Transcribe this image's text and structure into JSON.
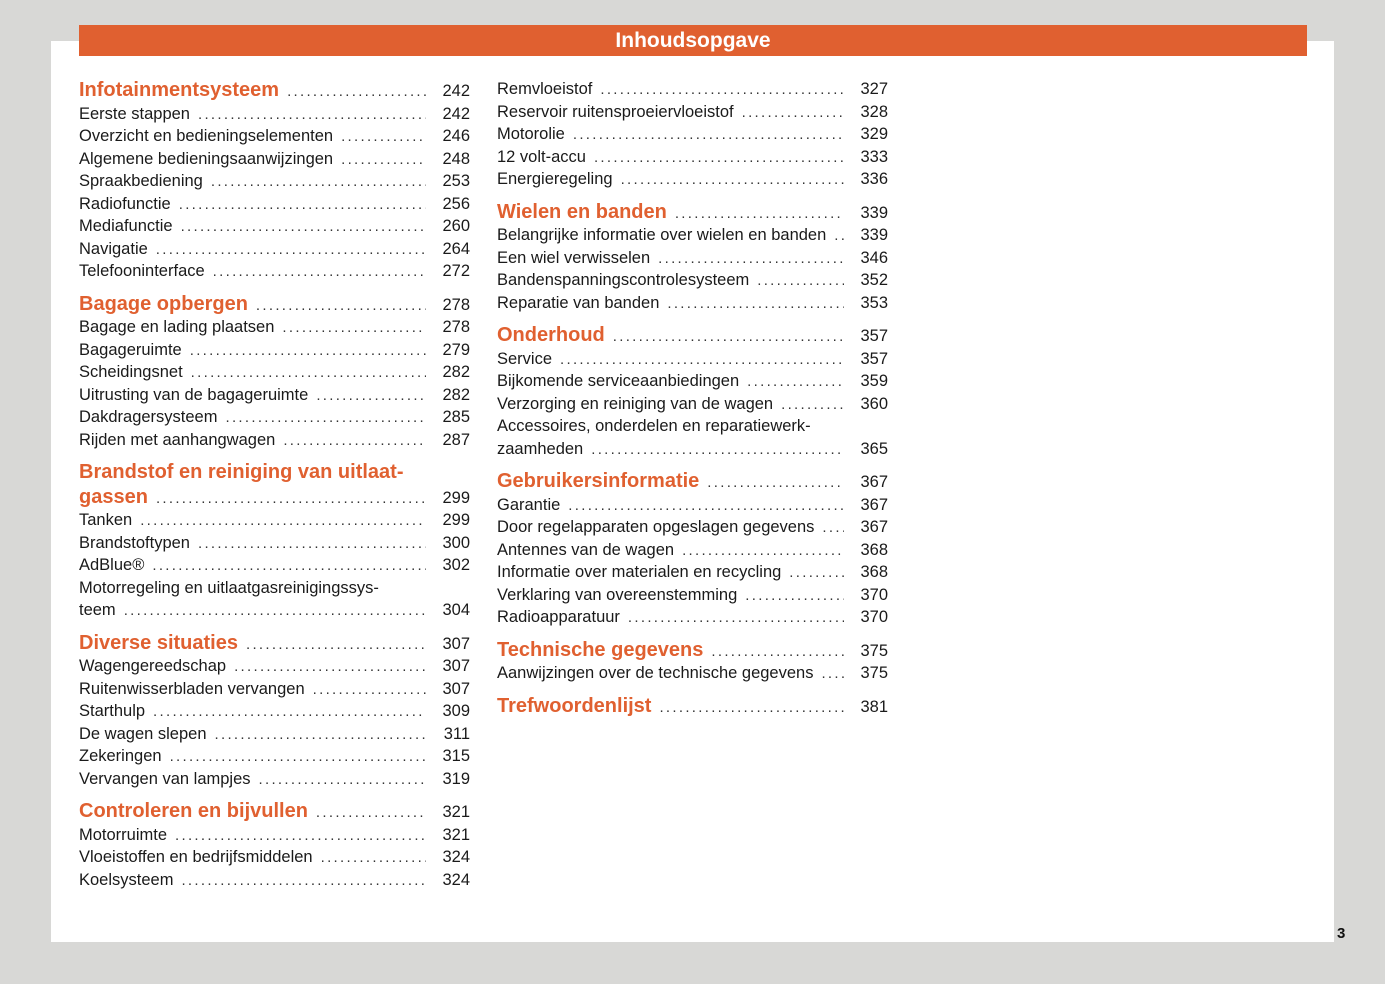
{
  "header": {
    "title": "Inhoudsopgave",
    "color": "#e06030"
  },
  "page_number": "3",
  "columns": [
    {
      "sections": [
        {
          "title_lines": [
            "Infotainmentsysteem"
          ],
          "page": "242",
          "entries": [
            {
              "lines": [
                "Eerste stappen"
              ],
              "page": "242"
            },
            {
              "lines": [
                "Overzicht en bedieningselementen"
              ],
              "page": "246"
            },
            {
              "lines": [
                "Algemene bedieningsaanwijzingen"
              ],
              "page": "248"
            },
            {
              "lines": [
                "Spraakbediening"
              ],
              "page": "253"
            },
            {
              "lines": [
                "Radiofunctie"
              ],
              "page": "256"
            },
            {
              "lines": [
                "Mediafunctie"
              ],
              "page": "260"
            },
            {
              "lines": [
                "Navigatie"
              ],
              "page": "264"
            },
            {
              "lines": [
                "Telefooninterface"
              ],
              "page": "272"
            }
          ]
        },
        {
          "title_lines": [
            "Bagage opbergen"
          ],
          "page": "278",
          "entries": [
            {
              "lines": [
                "Bagage en lading plaatsen"
              ],
              "page": "278"
            },
            {
              "lines": [
                "Bagageruimte"
              ],
              "page": "279"
            },
            {
              "lines": [
                "Scheidingsnet"
              ],
              "page": "282"
            },
            {
              "lines": [
                "Uitrusting van de bagageruimte"
              ],
              "page": "282"
            },
            {
              "lines": [
                "Dakdragersysteem"
              ],
              "page": "285"
            },
            {
              "lines": [
                "Rijden met aanhangwagen"
              ],
              "page": "287"
            }
          ]
        },
        {
          "title_lines": [
            "Brandstof en reiniging van uitlaat-",
            "gassen"
          ],
          "page": "299",
          "entries": [
            {
              "lines": [
                "Tanken"
              ],
              "page": "299"
            },
            {
              "lines": [
                "Brandstoftypen"
              ],
              "page": "300"
            },
            {
              "lines": [
                "AdBlue®"
              ],
              "page": "302"
            },
            {
              "lines": [
                "Motorregeling en uitlaatgasreinigingssys-",
                "teem"
              ],
              "page": "304"
            }
          ]
        },
        {
          "title_lines": [
            "Diverse situaties"
          ],
          "page": "307",
          "entries": [
            {
              "lines": [
                "Wagengereedschap"
              ],
              "page": "307"
            },
            {
              "lines": [
                "Ruitenwisserbladen vervangen"
              ],
              "page": "307"
            },
            {
              "lines": [
                "Starthulp"
              ],
              "page": "309"
            },
            {
              "lines": [
                "De wagen slepen"
              ],
              "page": "311"
            },
            {
              "lines": [
                "Zekeringen"
              ],
              "page": "315"
            },
            {
              "lines": [
                "Vervangen van lampjes"
              ],
              "page": "319"
            }
          ]
        },
        {
          "title_lines": [
            "Controleren en bijvullen"
          ],
          "page": "321",
          "entries": [
            {
              "lines": [
                "Motorruimte"
              ],
              "page": "321"
            },
            {
              "lines": [
                "Vloeistoffen en bedrijfsmiddelen"
              ],
              "page": "324"
            },
            {
              "lines": [
                "Koelsysteem"
              ],
              "page": "324"
            }
          ]
        }
      ]
    },
    {
      "sections": [
        {
          "title_lines": [],
          "page": "",
          "entries": [
            {
              "lines": [
                "Remvloeistof"
              ],
              "page": "327"
            },
            {
              "lines": [
                "Reservoir ruitensproeiervloeistof"
              ],
              "page": "328"
            },
            {
              "lines": [
                "Motorolie"
              ],
              "page": "329"
            },
            {
              "lines": [
                "12 volt-accu"
              ],
              "page": "333"
            },
            {
              "lines": [
                "Energieregeling"
              ],
              "page": "336"
            }
          ]
        },
        {
          "title_lines": [
            "Wielen en banden"
          ],
          "page": "339",
          "entries": [
            {
              "lines": [
                "Belangrijke informatie over wielen en banden"
              ],
              "page": "339"
            },
            {
              "lines": [
                "Een wiel verwisselen"
              ],
              "page": "346"
            },
            {
              "lines": [
                "Bandenspanningscontrolesysteem"
              ],
              "page": "352"
            },
            {
              "lines": [
                "Reparatie van banden"
              ],
              "page": "353"
            }
          ]
        },
        {
          "title_lines": [
            "Onderhoud"
          ],
          "page": "357",
          "entries": [
            {
              "lines": [
                "Service"
              ],
              "page": "357"
            },
            {
              "lines": [
                "Bijkomende serviceaanbiedingen"
              ],
              "page": "359"
            },
            {
              "lines": [
                "Verzorging en reiniging van de wagen"
              ],
              "page": "360"
            },
            {
              "lines": [
                "Accessoires, onderdelen en reparatiewerk-",
                "zaamheden"
              ],
              "page": "365"
            }
          ]
        },
        {
          "title_lines": [
            "Gebruikersinformatie"
          ],
          "page": "367",
          "entries": [
            {
              "lines": [
                "Garantie"
              ],
              "page": "367"
            },
            {
              "lines": [
                "Door regelapparaten opgeslagen gegevens"
              ],
              "page": "367"
            },
            {
              "lines": [
                "Antennes van de wagen"
              ],
              "page": "368"
            },
            {
              "lines": [
                "Informatie over materialen en recycling"
              ],
              "page": "368"
            },
            {
              "lines": [
                "Verklaring van overeenstemming"
              ],
              "page": "370"
            },
            {
              "lines": [
                "Radioapparatuur"
              ],
              "page": "370"
            }
          ]
        },
        {
          "title_lines": [
            "Technische gegevens"
          ],
          "page": "375",
          "entries": [
            {
              "lines": [
                "Aanwijzingen over de technische gegevens"
              ],
              "page": "375"
            }
          ]
        },
        {
          "title_lines": [
            "Trefwoordenlijst"
          ],
          "page": "381",
          "entries": []
        }
      ]
    }
  ]
}
